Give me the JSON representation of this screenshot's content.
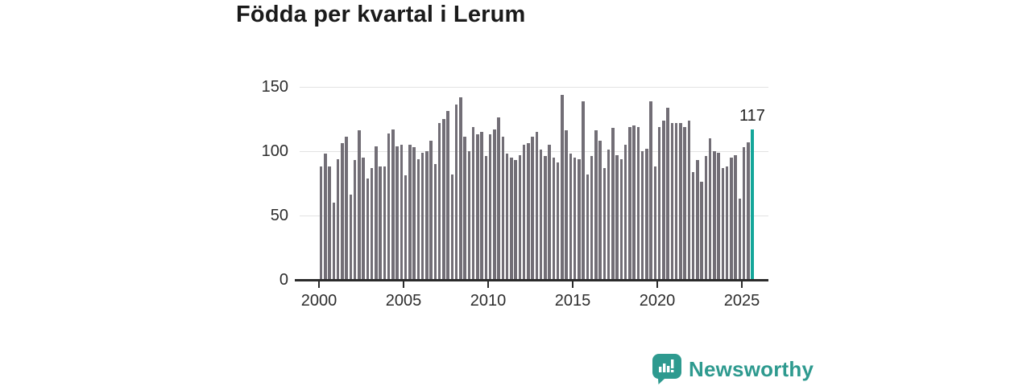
{
  "title": "Födda per kvartal i Lerum",
  "chart_data": {
    "type": "bar",
    "title": "Födda per kvartal i Lerum",
    "frequency": "quarterly",
    "x_start_label": "2000 Q1",
    "x_end_label": "2025 Q3",
    "x_tick_labels": [
      "2000",
      "2005",
      "2010",
      "2015",
      "2020",
      "2025"
    ],
    "y_ticks": [
      0,
      50,
      100,
      150
    ],
    "ylim": [
      0,
      150
    ],
    "grid": true,
    "legend": false,
    "bar_color": "#726e76",
    "highlight_color": "#14a69a",
    "highlight_last_bar": true,
    "highlight_label": "117",
    "values": [
      88,
      98,
      88,
      60,
      94,
      106,
      111,
      66,
      93,
      116,
      95,
      79,
      87,
      104,
      88,
      88,
      114,
      117,
      104,
      105,
      81,
      105,
      103,
      94,
      99,
      100,
      108,
      90,
      122,
      125,
      131,
      82,
      136,
      142,
      111,
      100,
      119,
      113,
      115,
      96,
      113,
      117,
      126,
      111,
      98,
      95,
      93,
      97,
      105,
      106,
      111,
      115,
      101,
      96,
      105,
      95,
      91,
      144,
      116,
      98,
      95,
      94,
      139,
      82,
      96,
      116,
      108,
      87,
      101,
      118,
      97,
      94,
      105,
      119,
      120,
      119,
      100,
      102,
      139,
      88,
      119,
      124,
      134,
      122,
      122,
      122,
      119,
      124,
      84,
      93,
      76,
      96,
      110,
      100,
      99,
      87,
      88,
      95,
      97,
      63,
      103,
      107,
      117
    ]
  },
  "branding": {
    "name": "Newsworthy",
    "color": "#2e9a8f",
    "icon": "newsworthy-speech-bubble-chart-icon"
  }
}
